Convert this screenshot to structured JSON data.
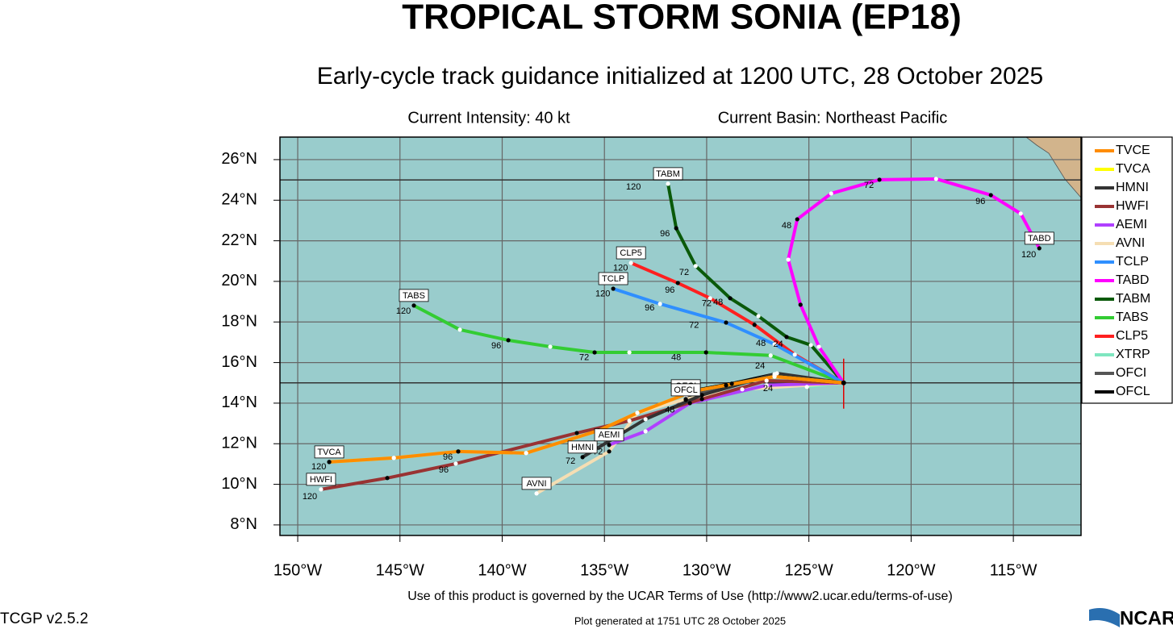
{
  "header": {
    "title": "TROPICAL STORM SONIA (EP18)",
    "subtitle": "Early-cycle track guidance initialized at 1200 UTC, 28 October 2025",
    "intensity": "Current Intensity: 40 kt",
    "basin": "Current Basin: Northeast Pacific"
  },
  "footer": {
    "terms": "Use of this product is governed by the UCAR Terms of Use (http://www2.ucar.edu/terms-of-use)",
    "version": "TCGP v2.5.2",
    "generated": "Plot generated at 1751 UTC   28 October 2025",
    "logo": "NCAR"
  },
  "map": {
    "xlim": [
      -150.87,
      -111.69
    ],
    "ylim": [
      7.48,
      27.11
    ],
    "xticks": [
      {
        "value": -150,
        "label": "150°W"
      },
      {
        "value": -145,
        "label": "145°W"
      },
      {
        "value": -140,
        "label": "140°W"
      },
      {
        "value": -135,
        "label": "135°W"
      },
      {
        "value": -130,
        "label": "130°W"
      },
      {
        "value": -125,
        "label": "125°W"
      },
      {
        "value": -120,
        "label": "120°W"
      },
      {
        "value": -115,
        "label": "115°W"
      }
    ],
    "yticks": [
      {
        "value": 8,
        "label": "8°N"
      },
      {
        "value": 10,
        "label": "10°N"
      },
      {
        "value": 12,
        "label": "12°N"
      },
      {
        "value": 14,
        "label": "14°N"
      },
      {
        "value": 16,
        "label": "16°N"
      },
      {
        "value": 18,
        "label": "18°N"
      },
      {
        "value": 20,
        "label": "20°N"
      },
      {
        "value": 22,
        "label": "22°N"
      },
      {
        "value": 24,
        "label": "24°N"
      },
      {
        "value": 26,
        "label": "26°N"
      }
    ],
    "highlight_lats": [
      25,
      15
    ],
    "tracks": [
      {
        "name": "TVCE",
        "color": "#ff8c00",
        "label": null,
        "lon": [
          -123.3,
          -126.68,
          -130.62,
          -133.39,
          -135.28,
          -138.83,
          -142.15,
          -145.3,
          -148.46
        ],
        "lat": [
          15.0,
          15.31,
          14.6,
          13.52,
          12.65,
          11.54,
          11.62,
          11.3,
          11.1
        ]
      },
      {
        "name": "TVCA",
        "color": "#ffff00",
        "label": "TVCA",
        "lon": [
          -123.3,
          -126.68,
          -130.62,
          -133.39,
          -135.28,
          -138.83,
          -142.15,
          -145.3,
          -148.46
        ],
        "lat": [
          15.0,
          15.31,
          14.6,
          13.52,
          12.65,
          11.54,
          11.62,
          11.3,
          11.1
        ]
      },
      {
        "name": "HMNI",
        "color": "#333333",
        "label": "HMNI",
        "lon": [
          -123.3,
          -126.56,
          -130.23,
          -132.99,
          -136.07
        ],
        "lat": [
          15.0,
          15.47,
          14.4,
          13.21,
          11.34
        ]
      },
      {
        "name": "HWFI",
        "color": "#993333",
        "label": "HWFI",
        "lon": [
          -123.3,
          -127.07,
          -130.23,
          -133.78,
          -136.35,
          -142.27,
          -145.62,
          -148.86
        ],
        "lat": [
          15.0,
          15.11,
          14.2,
          13.13,
          12.53,
          11.02,
          10.31,
          9.75
        ]
      },
      {
        "name": "AEMI",
        "color": "#b040ff",
        "label": "AEMI",
        "lon": [
          -123.3,
          -127.07,
          -130.82,
          -132.99,
          -134.77
        ],
        "lat": [
          15.0,
          14.88,
          14.0,
          12.61,
          11.94
        ]
      },
      {
        "name": "AVNI",
        "color": "#f5deb3",
        "label": "AVNI",
        "lon": [
          -123.3,
          -128.26,
          -131.02,
          -133.39,
          -134.77,
          -138.32
        ],
        "lat": [
          15.0,
          14.68,
          14.2,
          13.52,
          11.62,
          9.55
        ]
      },
      {
        "name": "TCLP",
        "color": "#2f8fff",
        "label": "TCLP",
        "lon": [
          -123.3,
          -126.68,
          -129.05,
          -132.28,
          -134.57
        ],
        "lat": [
          15.0,
          16.9,
          17.97,
          18.89,
          19.64
        ]
      },
      {
        "name": "TABD",
        "color": "#ff00ff",
        "label": "TABD",
        "lon": [
          -123.3,
          -124.51,
          -125.41,
          -126.01,
          -125.57,
          -123.91,
          -121.55,
          -118.78,
          -116.1,
          -114.64,
          -113.73
        ],
        "lat": [
          15.0,
          16.78,
          18.85,
          21.07,
          23.06,
          24.33,
          25.01,
          25.05,
          24.25,
          23.34,
          21.63
        ]
      },
      {
        "name": "TABM",
        "color": "#0a5a0a",
        "label": "TABM",
        "lon": [
          -123.3,
          -124.9,
          -126.09,
          -127.47,
          -128.85,
          -130.54,
          -131.49,
          -131.89
        ],
        "lat": [
          15.0,
          16.86,
          17.26,
          18.29,
          19.17,
          20.76,
          22.62,
          24.81
        ]
      },
      {
        "name": "TABS",
        "color": "#33cc33",
        "label": "TABS",
        "lon": [
          -123.3,
          -126.87,
          -130.03,
          -133.78,
          -135.48,
          -137.65,
          -139.7,
          -142.07,
          -144.32
        ],
        "lat": [
          15.0,
          16.35,
          16.5,
          16.5,
          16.5,
          16.78,
          17.1,
          17.62,
          18.81
        ]
      },
      {
        "name": "CLP5",
        "color": "#ff2020",
        "label": "CLP5",
        "lon": [
          -123.3,
          -125.69,
          -127.66,
          -129.83,
          -131.41,
          -133.7
        ],
        "lat": [
          15.0,
          16.39,
          17.86,
          19.17,
          19.92,
          20.91
        ]
      },
      {
        "name": "XTRP",
        "color": "#7fe6c0",
        "label": null,
        "lon": [
          -123.3,
          -125.1
        ],
        "lat": [
          15.0,
          14.8
        ]
      },
      {
        "name": "OFCI",
        "color": "#555555",
        "label": "OFCI",
        "lon": [
          -123.3,
          -126.68,
          -129.05,
          -131.02
        ],
        "lat": [
          15.0,
          15.35,
          14.88,
          14.36
        ]
      },
      {
        "name": "OFCL",
        "color": "#000000",
        "label": "OFCL",
        "lon": [
          -123.3,
          -126.68,
          -128.77,
          -130.54,
          -131.02
        ],
        "lat": [
          15.0,
          15.43,
          14.96,
          14.64,
          14.16
        ]
      }
    ],
    "annotations": [
      {
        "text": "48",
        "lon": -126.09,
        "lat": 22.74
      },
      {
        "text": "72",
        "lon": -122.06,
        "lat": 24.73
      },
      {
        "text": "96",
        "lon": -116.61,
        "lat": 23.93
      },
      {
        "text": "120",
        "lon": -114.25,
        "lat": 21.31
      },
      {
        "text": "120",
        "lon": -133.58,
        "lat": 24.65
      },
      {
        "text": "96",
        "lon": -132.04,
        "lat": 22.34
      },
      {
        "text": "72",
        "lon": -131.1,
        "lat": 20.44
      },
      {
        "text": "48",
        "lon": -129.44,
        "lat": 18.97
      },
      {
        "text": "120",
        "lon": -134.21,
        "lat": 20.64
      },
      {
        "text": "96",
        "lon": -131.8,
        "lat": 19.55
      },
      {
        "text": "72",
        "lon": -130.0,
        "lat": 18.9
      },
      {
        "text": "120",
        "lon": -135.08,
        "lat": 19.37
      },
      {
        "text": "96",
        "lon": -132.79,
        "lat": 18.69
      },
      {
        "text": "72",
        "lon": -130.62,
        "lat": 17.82
      },
      {
        "text": "48",
        "lon": -127.35,
        "lat": 16.94
      },
      {
        "text": "24",
        "lon": -126.5,
        "lat": 16.9
      },
      {
        "text": "120",
        "lon": -144.83,
        "lat": 18.53
      },
      {
        "text": "96",
        "lon": -140.29,
        "lat": 16.82
      },
      {
        "text": "72",
        "lon": -135.99,
        "lat": 16.23
      },
      {
        "text": "48",
        "lon": -131.49,
        "lat": 16.23
      },
      {
        "text": "24",
        "lon": -127.39,
        "lat": 15.83
      },
      {
        "text": "120",
        "lon": -148.97,
        "lat": 10.86
      },
      {
        "text": "96",
        "lon": -142.66,
        "lat": 11.34
      },
      {
        "text": "120",
        "lon": -149.41,
        "lat": 9.39
      },
      {
        "text": "96",
        "lon": -142.86,
        "lat": 10.7
      },
      {
        "text": "72",
        "lon": -136.66,
        "lat": 11.14
      },
      {
        "text": "72",
        "lon": -135.32,
        "lat": 11.58
      },
      {
        "text": "48",
        "lon": -131.8,
        "lat": 13.65
      },
      {
        "text": "24",
        "lon": -127.0,
        "lat": 14.7
      }
    ]
  }
}
